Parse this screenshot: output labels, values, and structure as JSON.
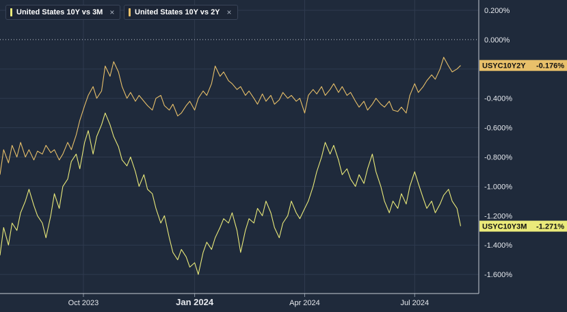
{
  "legend": {
    "items": [
      {
        "label": "United States 10Y vs 3M",
        "color": "#eaea7a",
        "close": "×"
      },
      {
        "label": "United States 10Y vs 2Y",
        "color": "#e8c06a",
        "close": "×"
      }
    ]
  },
  "chart_data": {
    "type": "line",
    "y_axis": {
      "ticks": [
        0.2,
        0.0,
        -0.2,
        -0.4,
        -0.6,
        -0.8,
        -1.0,
        -1.2,
        -1.4,
        -1.6
      ],
      "tick_labels": [
        "0.200%",
        "0.000%",
        "",
        "-0.400%",
        "-0.600%",
        "-0.800%",
        "-1.000%",
        "-1.200%",
        "-1.400%",
        "-1.600%"
      ],
      "range": [
        -1.73,
        0.27
      ],
      "position": "right"
    },
    "x_axis": {
      "range": [
        "2023-07-24",
        "2024-08-23"
      ],
      "ticks": [
        {
          "date": "2023-10-01",
          "label": "Oct 2023",
          "bold": false
        },
        {
          "date": "2024-01-01",
          "label": "Jan 2024",
          "bold": true
        },
        {
          "date": "2024-04-01",
          "label": "Apr 2024",
          "bold": false
        },
        {
          "date": "2024-07-01",
          "label": "Jul 2024",
          "bold": false
        }
      ]
    },
    "zero_line": {
      "value": 0.0,
      "style": "dotted"
    },
    "grid": true,
    "series": [
      {
        "id": "10y3m",
        "color": "#eaea7a",
        "tag_label": "USYC10Y3M",
        "tag_value": "-1.271%",
        "last_value": -1.271,
        "points": [
          [
            "2023-07-24",
            -1.47
          ],
          [
            "2023-07-27",
            -1.28
          ],
          [
            "2023-07-31",
            -1.4
          ],
          [
            "2023-08-03",
            -1.25
          ],
          [
            "2023-08-07",
            -1.3
          ],
          [
            "2023-08-10",
            -1.18
          ],
          [
            "2023-08-14",
            -1.1
          ],
          [
            "2023-08-17",
            -1.02
          ],
          [
            "2023-08-21",
            -1.13
          ],
          [
            "2023-08-24",
            -1.2
          ],
          [
            "2023-08-28",
            -1.25
          ],
          [
            "2023-08-31",
            -1.35
          ],
          [
            "2023-09-04",
            -1.2
          ],
          [
            "2023-09-07",
            -1.05
          ],
          [
            "2023-09-11",
            -1.15
          ],
          [
            "2023-09-14",
            -1.0
          ],
          [
            "2023-09-18",
            -0.95
          ],
          [
            "2023-09-21",
            -0.83
          ],
          [
            "2023-09-25",
            -0.78
          ],
          [
            "2023-09-28",
            -0.88
          ],
          [
            "2023-10-02",
            -0.7
          ],
          [
            "2023-10-05",
            -0.62
          ],
          [
            "2023-10-09",
            -0.78
          ],
          [
            "2023-10-12",
            -0.66
          ],
          [
            "2023-10-16",
            -0.58
          ],
          [
            "2023-10-19",
            -0.5
          ],
          [
            "2023-10-23",
            -0.58
          ],
          [
            "2023-10-26",
            -0.66
          ],
          [
            "2023-10-30",
            -0.73
          ],
          [
            "2023-11-02",
            -0.82
          ],
          [
            "2023-11-06",
            -0.86
          ],
          [
            "2023-11-09",
            -0.8
          ],
          [
            "2023-11-13",
            -0.9
          ],
          [
            "2023-11-16",
            -1.0
          ],
          [
            "2023-11-20",
            -0.92
          ],
          [
            "2023-11-23",
            -1.02
          ],
          [
            "2023-11-27",
            -1.05
          ],
          [
            "2023-11-30",
            -1.15
          ],
          [
            "2023-12-04",
            -1.25
          ],
          [
            "2023-12-07",
            -1.2
          ],
          [
            "2023-12-11",
            -1.35
          ],
          [
            "2023-12-14",
            -1.45
          ],
          [
            "2023-12-18",
            -1.5
          ],
          [
            "2023-12-21",
            -1.43
          ],
          [
            "2023-12-25",
            -1.48
          ],
          [
            "2023-12-28",
            -1.55
          ],
          [
            "2024-01-01",
            -1.52
          ],
          [
            "2024-01-04",
            -1.6
          ],
          [
            "2024-01-08",
            -1.45
          ],
          [
            "2024-01-11",
            -1.38
          ],
          [
            "2024-01-15",
            -1.43
          ],
          [
            "2024-01-18",
            -1.35
          ],
          [
            "2024-01-22",
            -1.28
          ],
          [
            "2024-01-25",
            -1.22
          ],
          [
            "2024-01-29",
            -1.25
          ],
          [
            "2024-02-01",
            -1.18
          ],
          [
            "2024-02-05",
            -1.3
          ],
          [
            "2024-02-08",
            -1.45
          ],
          [
            "2024-02-12",
            -1.3
          ],
          [
            "2024-02-15",
            -1.22
          ],
          [
            "2024-02-19",
            -1.25
          ],
          [
            "2024-02-22",
            -1.15
          ],
          [
            "2024-02-26",
            -1.2
          ],
          [
            "2024-02-29",
            -1.1
          ],
          [
            "2024-03-04",
            -1.18
          ],
          [
            "2024-03-07",
            -1.28
          ],
          [
            "2024-03-11",
            -1.35
          ],
          [
            "2024-03-14",
            -1.25
          ],
          [
            "2024-03-18",
            -1.2
          ],
          [
            "2024-03-21",
            -1.1
          ],
          [
            "2024-03-25",
            -1.18
          ],
          [
            "2024-03-28",
            -1.22
          ],
          [
            "2024-04-01",
            -1.15
          ],
          [
            "2024-04-04",
            -1.1
          ],
          [
            "2024-04-08",
            -1.0
          ],
          [
            "2024-04-11",
            -0.9
          ],
          [
            "2024-04-15",
            -0.8
          ],
          [
            "2024-04-18",
            -0.7
          ],
          [
            "2024-04-22",
            -0.78
          ],
          [
            "2024-04-25",
            -0.72
          ],
          [
            "2024-04-29",
            -0.82
          ],
          [
            "2024-05-02",
            -0.92
          ],
          [
            "2024-05-06",
            -0.88
          ],
          [
            "2024-05-09",
            -0.95
          ],
          [
            "2024-05-13",
            -1.0
          ],
          [
            "2024-05-16",
            -0.92
          ],
          [
            "2024-05-20",
            -0.98
          ],
          [
            "2024-05-23",
            -0.88
          ],
          [
            "2024-05-27",
            -0.78
          ],
          [
            "2024-05-30",
            -0.9
          ],
          [
            "2024-06-03",
            -1.0
          ],
          [
            "2024-06-06",
            -1.1
          ],
          [
            "2024-06-10",
            -1.18
          ],
          [
            "2024-06-13",
            -1.1
          ],
          [
            "2024-06-17",
            -1.15
          ],
          [
            "2024-06-20",
            -1.05
          ],
          [
            "2024-06-24",
            -1.12
          ],
          [
            "2024-06-27",
            -1.0
          ],
          [
            "2024-07-01",
            -0.9
          ],
          [
            "2024-07-04",
            -0.98
          ],
          [
            "2024-07-08",
            -1.08
          ],
          [
            "2024-07-11",
            -1.15
          ],
          [
            "2024-07-15",
            -1.1
          ],
          [
            "2024-07-18",
            -1.18
          ],
          [
            "2024-07-22",
            -1.12
          ],
          [
            "2024-07-25",
            -1.06
          ],
          [
            "2024-07-29",
            -1.02
          ],
          [
            "2024-08-01",
            -1.1
          ],
          [
            "2024-08-05",
            -1.15
          ],
          [
            "2024-08-08",
            -1.271
          ]
        ]
      },
      {
        "id": "10y2y",
        "color": "#e8c06a",
        "tag_label": "USYC10Y2Y",
        "tag_value": "-0.176%",
        "last_value": -0.176,
        "points": [
          [
            "2023-07-24",
            -0.92
          ],
          [
            "2023-07-27",
            -0.75
          ],
          [
            "2023-07-31",
            -0.84
          ],
          [
            "2023-08-03",
            -0.72
          ],
          [
            "2023-08-07",
            -0.8
          ],
          [
            "2023-08-10",
            -0.7
          ],
          [
            "2023-08-14",
            -0.8
          ],
          [
            "2023-08-17",
            -0.75
          ],
          [
            "2023-08-21",
            -0.82
          ],
          [
            "2023-08-24",
            -0.76
          ],
          [
            "2023-08-28",
            -0.78
          ],
          [
            "2023-08-31",
            -0.72
          ],
          [
            "2023-09-04",
            -0.77
          ],
          [
            "2023-09-07",
            -0.75
          ],
          [
            "2023-09-11",
            -0.82
          ],
          [
            "2023-09-14",
            -0.78
          ],
          [
            "2023-09-18",
            -0.7
          ],
          [
            "2023-09-21",
            -0.75
          ],
          [
            "2023-09-25",
            -0.65
          ],
          [
            "2023-09-28",
            -0.55
          ],
          [
            "2023-10-02",
            -0.45
          ],
          [
            "2023-10-05",
            -0.38
          ],
          [
            "2023-10-09",
            -0.32
          ],
          [
            "2023-10-12",
            -0.4
          ],
          [
            "2023-10-16",
            -0.35
          ],
          [
            "2023-10-19",
            -0.18
          ],
          [
            "2023-10-23",
            -0.25
          ],
          [
            "2023-10-26",
            -0.15
          ],
          [
            "2023-10-30",
            -0.22
          ],
          [
            "2023-11-02",
            -0.32
          ],
          [
            "2023-11-06",
            -0.4
          ],
          [
            "2023-11-09",
            -0.36
          ],
          [
            "2023-11-13",
            -0.42
          ],
          [
            "2023-11-16",
            -0.38
          ],
          [
            "2023-11-20",
            -0.42
          ],
          [
            "2023-11-23",
            -0.45
          ],
          [
            "2023-11-27",
            -0.48
          ],
          [
            "2023-11-30",
            -0.4
          ],
          [
            "2023-12-04",
            -0.38
          ],
          [
            "2023-12-07",
            -0.45
          ],
          [
            "2023-12-11",
            -0.48
          ],
          [
            "2023-12-14",
            -0.44
          ],
          [
            "2023-12-18",
            -0.52
          ],
          [
            "2023-12-21",
            -0.5
          ],
          [
            "2023-12-25",
            -0.45
          ],
          [
            "2023-12-28",
            -0.42
          ],
          [
            "2024-01-01",
            -0.48
          ],
          [
            "2024-01-04",
            -0.4
          ],
          [
            "2024-01-08",
            -0.35
          ],
          [
            "2024-01-11",
            -0.38
          ],
          [
            "2024-01-15",
            -0.3
          ],
          [
            "2024-01-18",
            -0.18
          ],
          [
            "2024-01-22",
            -0.25
          ],
          [
            "2024-01-25",
            -0.22
          ],
          [
            "2024-01-29",
            -0.28
          ],
          [
            "2024-02-01",
            -0.3
          ],
          [
            "2024-02-05",
            -0.34
          ],
          [
            "2024-02-08",
            -0.32
          ],
          [
            "2024-02-12",
            -0.38
          ],
          [
            "2024-02-15",
            -0.35
          ],
          [
            "2024-02-19",
            -0.4
          ],
          [
            "2024-02-22",
            -0.44
          ],
          [
            "2024-02-26",
            -0.37
          ],
          [
            "2024-02-29",
            -0.42
          ],
          [
            "2024-03-04",
            -0.38
          ],
          [
            "2024-03-07",
            -0.44
          ],
          [
            "2024-03-11",
            -0.41
          ],
          [
            "2024-03-14",
            -0.36
          ],
          [
            "2024-03-18",
            -0.4
          ],
          [
            "2024-03-21",
            -0.38
          ],
          [
            "2024-03-25",
            -0.42
          ],
          [
            "2024-03-28",
            -0.4
          ],
          [
            "2024-04-01",
            -0.5
          ],
          [
            "2024-04-04",
            -0.38
          ],
          [
            "2024-04-08",
            -0.34
          ],
          [
            "2024-04-11",
            -0.37
          ],
          [
            "2024-04-15",
            -0.32
          ],
          [
            "2024-04-18",
            -0.38
          ],
          [
            "2024-04-22",
            -0.34
          ],
          [
            "2024-04-25",
            -0.3
          ],
          [
            "2024-04-29",
            -0.36
          ],
          [
            "2024-05-02",
            -0.32
          ],
          [
            "2024-05-06",
            -0.38
          ],
          [
            "2024-05-09",
            -0.36
          ],
          [
            "2024-05-13",
            -0.42
          ],
          [
            "2024-05-16",
            -0.46
          ],
          [
            "2024-05-20",
            -0.42
          ],
          [
            "2024-05-23",
            -0.48
          ],
          [
            "2024-05-27",
            -0.44
          ],
          [
            "2024-05-30",
            -0.4
          ],
          [
            "2024-06-03",
            -0.44
          ],
          [
            "2024-06-06",
            -0.46
          ],
          [
            "2024-06-10",
            -0.42
          ],
          [
            "2024-06-13",
            -0.48
          ],
          [
            "2024-06-17",
            -0.49
          ],
          [
            "2024-06-20",
            -0.46
          ],
          [
            "2024-06-24",
            -0.5
          ],
          [
            "2024-06-27",
            -0.38
          ],
          [
            "2024-07-01",
            -0.3
          ],
          [
            "2024-07-04",
            -0.36
          ],
          [
            "2024-07-08",
            -0.32
          ],
          [
            "2024-07-11",
            -0.28
          ],
          [
            "2024-07-15",
            -0.24
          ],
          [
            "2024-07-18",
            -0.27
          ],
          [
            "2024-07-22",
            -0.2
          ],
          [
            "2024-07-25",
            -0.12
          ],
          [
            "2024-07-29",
            -0.18
          ],
          [
            "2024-08-01",
            -0.22
          ],
          [
            "2024-08-05",
            -0.2
          ],
          [
            "2024-08-08",
            -0.176
          ]
        ]
      }
    ]
  }
}
